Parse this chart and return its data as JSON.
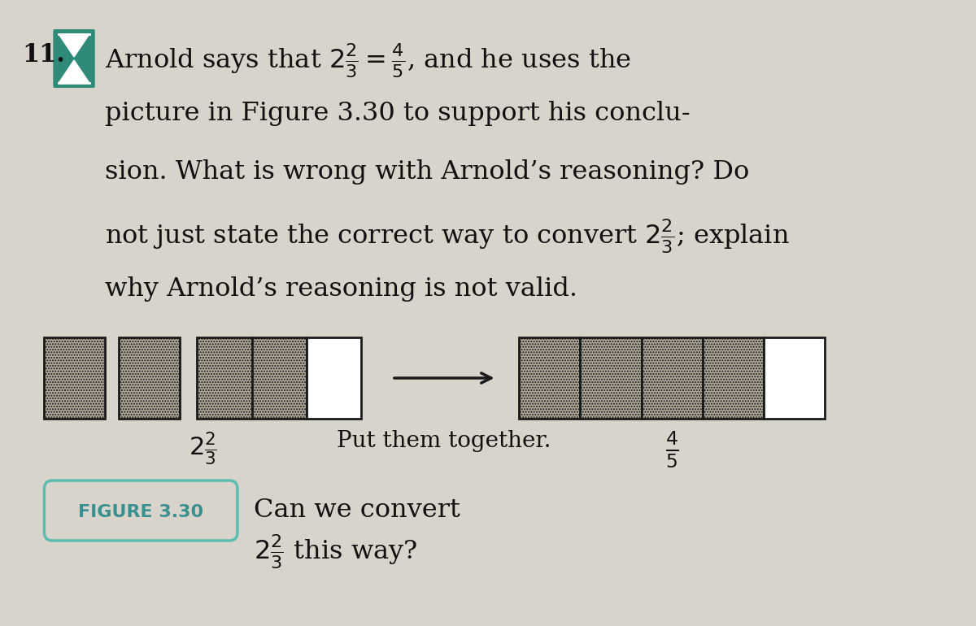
{
  "bg_color": "#d8d4cc",
  "title_number": "11.",
  "line1": "Arnold says that $2\\frac{2}{3} = \\frac{4}{5}$, and he uses the",
  "line2": "picture in Figure 3.30 to support his conclu-",
  "line3": "sion. What is wrong with Arnold’s reasoning? Do",
  "line4": "not just state the correct way to convert $2\\frac{2}{3}$; explain",
  "line5": "why Arnold’s reasoning is not valid.",
  "label_left": "$2\\frac{2}{3}$",
  "label_middle": "Put them together.",
  "label_right": "$\\frac{4}{5}$",
  "figure_label": "FIGURE 3.30",
  "caption_line1": "Can we convert",
  "caption_line2": "$2\\frac{2}{3}$ this way?",
  "box_edge_color": "#1a1a1a",
  "shaded_fill": "#b0a898",
  "white_fill": "#ffffff",
  "arrow_color": "#1a1a1a",
  "figure_badge_edge": "#5bbcb0",
  "figure_badge_text": "#3a9090",
  "text_color": "#111111",
  "icon_color": "#2e8b7a",
  "icon_bg": "#2e8b7a"
}
